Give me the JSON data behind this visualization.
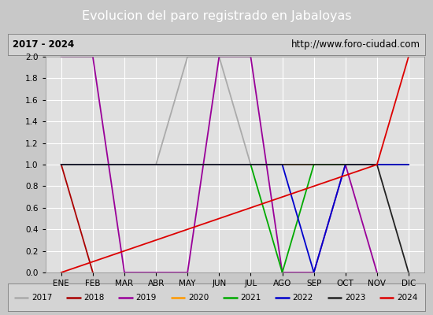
{
  "title": "Evolucion del paro registrado en Jabaloyas",
  "subtitle_left": "2017 - 2024",
  "subtitle_right": "http://www.foro-ciudad.com",
  "months": [
    "ENE",
    "FEB",
    "MAR",
    "ABR",
    "MAY",
    "JUN",
    "JUL",
    "AGO",
    "SEP",
    "OCT",
    "NOV",
    "DIC"
  ],
  "ylim": [
    0.0,
    2.0
  ],
  "yticks": [
    0.0,
    0.2,
    0.4,
    0.6,
    0.8,
    1.0,
    1.2,
    1.4,
    1.6,
    1.8,
    2.0
  ],
  "bg_outer": "#c8c8c8",
  "bg_plot": "#e0e0e0",
  "bg_subtitle": "#d4d4d4",
  "bg_legend": "#d4d4d4",
  "title_bg": "#4472c4",
  "title_color": "#ffffff",
  "series": {
    "2017": {
      "color": "#aaaaaa",
      "values": [
        1,
        1,
        1,
        1,
        2,
        2,
        1,
        1,
        1,
        1,
        1,
        1
      ]
    },
    "2018": {
      "color": "#aa0000",
      "values": [
        1,
        0,
        null,
        null,
        null,
        null,
        null,
        null,
        null,
        null,
        null,
        null
      ]
    },
    "2019": {
      "color": "#990099",
      "values": [
        2,
        2,
        0,
        0,
        0,
        2,
        2,
        0,
        0,
        1,
        0,
        null
      ]
    },
    "2020": {
      "color": "#ff9900",
      "values": [
        1,
        1,
        1,
        1,
        1,
        1,
        1,
        1,
        1,
        1,
        1,
        1
      ]
    },
    "2021": {
      "color": "#00aa00",
      "values": [
        1,
        1,
        1,
        1,
        1,
        1,
        1,
        0,
        1,
        1,
        1,
        1
      ]
    },
    "2022": {
      "color": "#0000cc",
      "values": [
        1,
        1,
        1,
        1,
        1,
        1,
        1,
        1,
        0,
        1,
        1,
        1
      ]
    },
    "2023": {
      "color": "#222222",
      "values": [
        1,
        1,
        1,
        1,
        1,
        1,
        1,
        1,
        1,
        1,
        1,
        0
      ]
    },
    "2024": {
      "color": "#dd0000",
      "values": [
        0,
        null,
        null,
        null,
        null,
        null,
        null,
        null,
        null,
        null,
        1,
        2
      ]
    }
  }
}
